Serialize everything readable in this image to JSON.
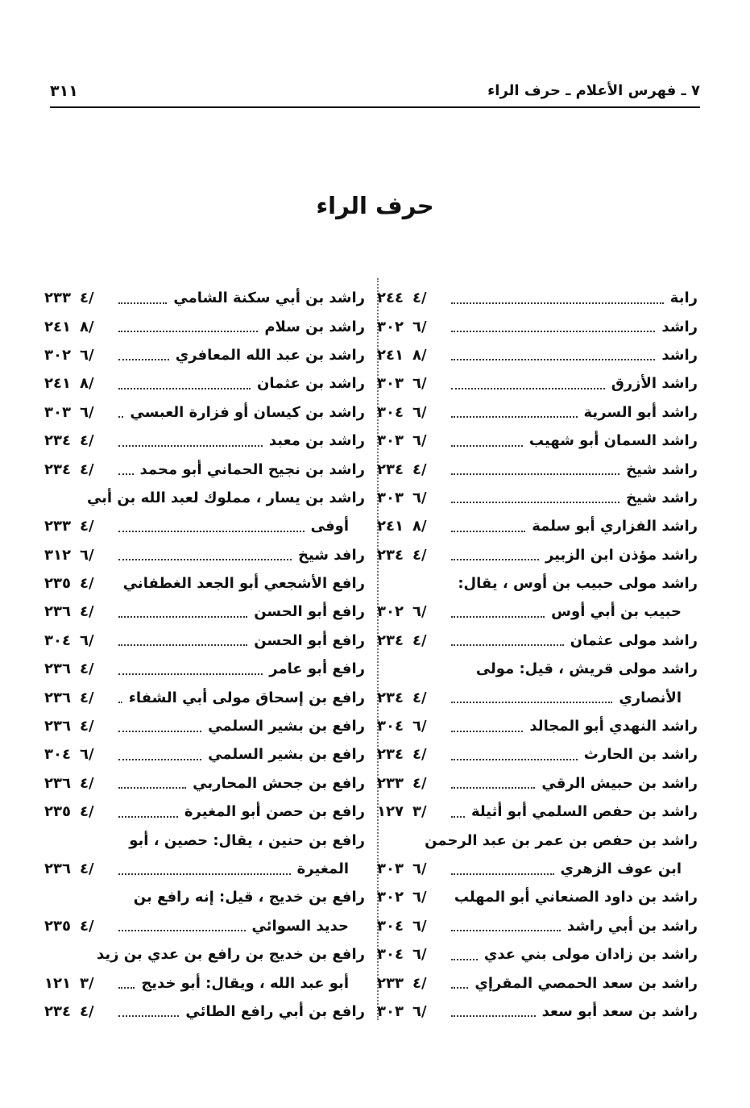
{
  "header": {
    "title": "٧ ـ فهرس الأعلام ـ حرف الراء",
    "page_number": "٣١١"
  },
  "section_title": "حرف الراء",
  "right_column": [
    {
      "text": "رابة",
      "vol": "٤/",
      "page": "٢٤٤"
    },
    {
      "text": "راشد",
      "vol": "٦/",
      "page": "٣٠٢"
    },
    {
      "text": "راشد",
      "vol": "٨/",
      "page": "٢٤١"
    },
    {
      "text": "راشد الأزرق",
      "vol": "٦/",
      "page": "٣٠٣"
    },
    {
      "text": "راشد أبو السرية",
      "vol": "٦/",
      "page": "٣٠٤"
    },
    {
      "text": "راشد السمان أبو شهيب",
      "vol": "٦/",
      "page": "٣٠٣"
    },
    {
      "text": "راشد شيخ",
      "vol": "٤/",
      "page": "٢٣٤"
    },
    {
      "text": "راشد شيخ",
      "vol": "٦/",
      "page": "٣٠٣"
    },
    {
      "text": "راشد الفزاري أبو سلمة",
      "vol": "٨/",
      "page": "٢٤١"
    },
    {
      "text": "راشد مؤذن ابن الزبير",
      "vol": "٤/",
      "page": "٢٣٤"
    },
    {
      "text": "راشد مولى حبيب بن أوس ، يقال:"
    },
    {
      "text": "حبيب بن أبي أوس",
      "vol": "٦/",
      "page": "٣٠٢",
      "indent": true
    },
    {
      "text": "راشد مولى عثمان",
      "vol": "٤/",
      "page": "٢٣٤"
    },
    {
      "text": "راشد مولى قريش ، قيل: مولى"
    },
    {
      "text": "الأنصاري",
      "vol": "٤/",
      "page": "٢٣٤",
      "indent": true
    },
    {
      "text": "راشد النهدي أبو المجالد",
      "vol": "٦/",
      "page": "٣٠٤"
    },
    {
      "text": "راشد بن الحارث",
      "vol": "٤/",
      "page": "٢٣٤"
    },
    {
      "text": "راشد بن حبيش الرقي",
      "vol": "٤/",
      "page": "٢٣٣"
    },
    {
      "text": "راشد بن حفص السلمي أبو أثيلة",
      "vol": "٣/",
      "page": "١٢٧"
    },
    {
      "text": "راشد بن حفص بن عمر بن عبد الرحمن"
    },
    {
      "text": "ابن عوف الزهري",
      "vol": "٦/",
      "page": "٣٠٣",
      "indent": true
    },
    {
      "text": "راشد بن داود الصنعاني أبو المهلب",
      "vol": "٦/",
      "page": "٣٠٢"
    },
    {
      "text": "راشد بن أبي راشد",
      "vol": "٦/",
      "page": "٣٠٤"
    },
    {
      "text": "راشد بن زادان مولى بني عدي",
      "vol": "٦/",
      "page": "٣٠٤"
    },
    {
      "text": "راشد بن سعد الحمصي المقرإي",
      "vol": "٤/",
      "page": "٢٣٣"
    },
    {
      "text": "راشد بن سعد أبو سعد",
      "vol": "٦/",
      "page": "٣٠٣"
    }
  ],
  "left_column": [
    {
      "text": "راشد بن أبي سكنة الشامي",
      "vol": "٤/",
      "page": "٢٣٣"
    },
    {
      "text": "راشد بن سلام",
      "vol": "٨/",
      "page": "٢٤١"
    },
    {
      "text": "راشد بن عبد الله المعافري",
      "vol": "٦/",
      "page": "٣٠٢"
    },
    {
      "text": "راشد بن عثمان",
      "vol": "٨/",
      "page": "٢٤١"
    },
    {
      "text": "راشد بن كيسان أو فزارة العبسي",
      "vol": "٦/",
      "page": "٣٠٣"
    },
    {
      "text": "راشد بن معبد",
      "vol": "٤/",
      "page": "٢٣٤"
    },
    {
      "text": "راشد بن نجيح الحماني أبو محمد",
      "vol": "٤/",
      "page": "٢٣٤"
    },
    {
      "text": "راشد بن يسار ، مملوك لعبد الله بن أبي"
    },
    {
      "text": "أوفى",
      "vol": "٤/",
      "page": "٢٣٣",
      "indent": true
    },
    {
      "text": "رافد شيخ",
      "vol": "٦/",
      "page": "٣١٢"
    },
    {
      "text": "رافع الأشجعي أبو الجعد الغطفاني",
      "vol": "٤/",
      "page": "٢٣٥"
    },
    {
      "text": "رافع أبو الحسن",
      "vol": "٤/",
      "page": "٢٣٦"
    },
    {
      "text": "رافع أبو الحسن",
      "vol": "٦/",
      "page": "٣٠٤"
    },
    {
      "text": "رافع أبو عامر",
      "vol": "٤/",
      "page": "٢٣٦"
    },
    {
      "text": "رافع بن إسحاق مولى أبي الشفاء",
      "vol": "٤/",
      "page": "٢٣٦"
    },
    {
      "text": "رافع بن بشير السلمي",
      "vol": "٤/",
      "page": "٢٣٦"
    },
    {
      "text": "رافع بن بشير السلمي",
      "vol": "٦/",
      "page": "٣٠٤"
    },
    {
      "text": "رافع بن جحش المحاربي",
      "vol": "٤/",
      "page": "٢٣٦"
    },
    {
      "text": "رافع بن حصن أبو المغيرة",
      "vol": "٤/",
      "page": "٢٣٥"
    },
    {
      "text": "رافع بن حنين ، يقال: حصين ، أبو"
    },
    {
      "text": "المغيرة",
      "vol": "٤/",
      "page": "٢٣٦",
      "indent": true
    },
    {
      "text": "رافع بن خديج ، قيل: إنه رافع بن"
    },
    {
      "text": "حديد السوائي",
      "vol": "٤/",
      "page": "٢٣٥",
      "indent": true
    },
    {
      "text": "رافع بن خديج بن رافع بن عدي بن زيد"
    },
    {
      "text": "أبو عبد الله ، ويقال: أبو خديج",
      "vol": "٣/",
      "page": "١٢١",
      "indent": true
    },
    {
      "text": "رافع بن أبي رافع الطائي",
      "vol": "٤/",
      "page": "٢٣٤"
    }
  ]
}
